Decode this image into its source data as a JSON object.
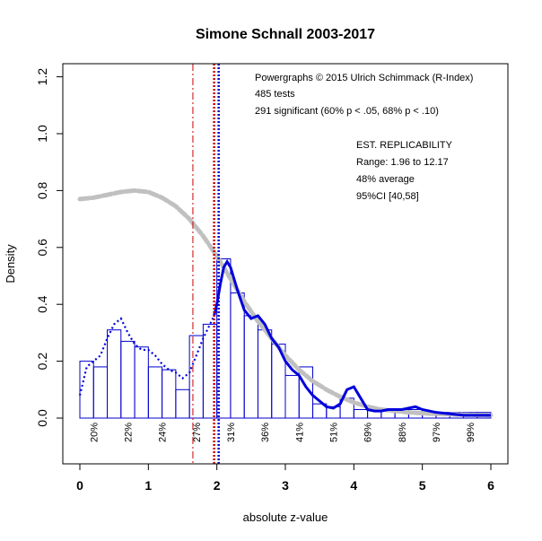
{
  "chart_data": {
    "type": "bar",
    "title": "Simone Schnall 2003-2017",
    "xlabel": "absolute z-value",
    "ylabel": "Density",
    "xlim": [
      0,
      6
    ],
    "ylim": [
      -0.15,
      1.25
    ],
    "x_ticks": [
      0,
      1,
      2,
      3,
      4,
      5,
      6
    ],
    "y_ticks": [
      0.0,
      0.2,
      0.4,
      0.6,
      0.8,
      1.0,
      1.2
    ],
    "x_tick_labels": [
      "0",
      "1",
      "2",
      "3",
      "4",
      "5",
      "6"
    ],
    "y_tick_labels": [
      "0.0",
      "0.2",
      "0.4",
      "0.6",
      "0.8",
      "1.0",
      "1.2"
    ],
    "bin_width": 0.2,
    "bins_start": [
      0,
      0.2,
      0.4,
      0.6,
      0.8,
      1.0,
      1.2,
      1.4,
      1.6,
      1.8,
      2.0,
      2.2,
      2.4,
      2.6,
      2.8,
      3.0,
      3.2,
      3.4,
      3.6,
      3.8,
      4.0,
      4.2,
      4.4,
      4.6,
      4.8,
      5.0,
      5.2,
      5.4,
      5.6,
      5.8
    ],
    "bar_values": [
      0.2,
      0.18,
      0.31,
      0.27,
      0.25,
      0.18,
      0.17,
      0.1,
      0.29,
      0.33,
      0.56,
      0.44,
      0.36,
      0.31,
      0.26,
      0.15,
      0.18,
      0.05,
      0.04,
      0.07,
      0.03,
      0.03,
      0.03,
      0.03,
      0.03,
      0.02,
      0.02,
      0.02,
      0.02,
      0.02
    ],
    "bar_color": "#0000cc",
    "percent_labels": [
      {
        "x": 0.2,
        "label": "20%"
      },
      {
        "x": 0.7,
        "label": "22%"
      },
      {
        "x": 1.2,
        "label": "24%"
      },
      {
        "x": 1.7,
        "label": "27%"
      },
      {
        "x": 2.2,
        "label": "31%"
      },
      {
        "x": 2.7,
        "label": "36%"
      },
      {
        "x": 3.2,
        "label": "41%"
      },
      {
        "x": 3.7,
        "label": "51%"
      },
      {
        "x": 4.2,
        "label": "69%"
      },
      {
        "x": 4.7,
        "label": "88%"
      },
      {
        "x": 5.2,
        "label": "97%"
      },
      {
        "x": 5.7,
        "label": "99%"
      }
    ],
    "density_curve": {
      "color": "#0000dd",
      "x": [
        0.0,
        0.1,
        0.2,
        0.3,
        0.4,
        0.5,
        0.6,
        0.7,
        0.8,
        0.9,
        1.0,
        1.1,
        1.2,
        1.3,
        1.4,
        1.5,
        1.6,
        1.7,
        1.8,
        1.9,
        1.96,
        2.0,
        2.05,
        2.1,
        2.15,
        2.2,
        2.3,
        2.4,
        2.5,
        2.6,
        2.7,
        2.8,
        2.9,
        3.0,
        3.1,
        3.2,
        3.3,
        3.4,
        3.5,
        3.6,
        3.7,
        3.8,
        3.9,
        4.0,
        4.1,
        4.2,
        4.3,
        4.4,
        4.5,
        4.6,
        4.7,
        4.8,
        4.9,
        5.0,
        5.2,
        5.4,
        5.6,
        5.8,
        6.0
      ],
      "y": [
        0.08,
        0.18,
        0.2,
        0.22,
        0.28,
        0.33,
        0.35,
        0.3,
        0.26,
        0.24,
        0.24,
        0.22,
        0.19,
        0.17,
        0.16,
        0.14,
        0.16,
        0.22,
        0.28,
        0.33,
        0.36,
        0.4,
        0.47,
        0.53,
        0.55,
        0.53,
        0.45,
        0.38,
        0.35,
        0.36,
        0.33,
        0.28,
        0.25,
        0.2,
        0.17,
        0.15,
        0.11,
        0.08,
        0.06,
        0.04,
        0.035,
        0.05,
        0.1,
        0.11,
        0.07,
        0.03,
        0.025,
        0.025,
        0.03,
        0.03,
        0.03,
        0.035,
        0.04,
        0.03,
        0.02,
        0.015,
        0.01,
        0.01,
        0.01
      ],
      "solid_from_x": 1.96
    },
    "fitted_curve": {
      "color": "#c0c0c0",
      "x": [
        0.0,
        0.2,
        0.4,
        0.6,
        0.8,
        1.0,
        1.2,
        1.4,
        1.6,
        1.8,
        2.0,
        2.2,
        2.4,
        2.6,
        2.8,
        3.0,
        3.2,
        3.4,
        3.6,
        3.8,
        4.0,
        4.2,
        4.4,
        4.6,
        4.8,
        5.0,
        5.2,
        5.4,
        5.6,
        5.8,
        6.0
      ],
      "y": [
        0.77,
        0.775,
        0.785,
        0.795,
        0.8,
        0.795,
        0.775,
        0.745,
        0.7,
        0.64,
        0.57,
        0.49,
        0.41,
        0.34,
        0.28,
        0.22,
        0.17,
        0.13,
        0.1,
        0.075,
        0.055,
        0.04,
        0.03,
        0.025,
        0.02,
        0.017,
        0.015,
        0.013,
        0.012,
        0.011,
        0.01
      ]
    },
    "vertical_lines": [
      {
        "x": 1.65,
        "color": "#cc0000",
        "style": "dash-dot"
      },
      {
        "x": 1.96,
        "color": "#cc0000",
        "style": "dotted"
      },
      {
        "x": 2.0,
        "color": "#0000cc",
        "style": "dotted"
      }
    ],
    "annotations": {
      "powergraph": "Powergraphs © 2015 Ulrich Schimmack (R-Index)",
      "tests": "485 tests",
      "significant": "291 significant (60% p < .05, 68% p < .10)",
      "replic_title": "EST. REPLICABILITY",
      "range": "Range: 1.96 to 12.17",
      "average": "48% average",
      "ci": "95%CI [40,58]"
    }
  }
}
